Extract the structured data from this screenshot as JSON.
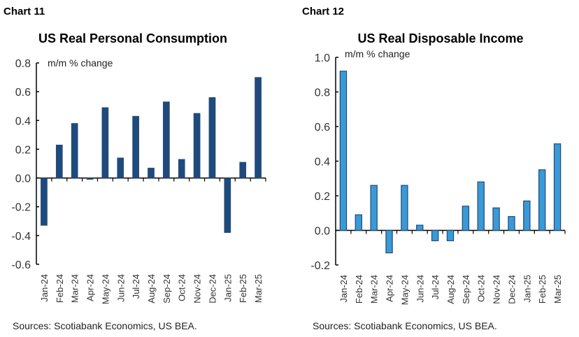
{
  "chart_data": [
    {
      "type": "bar",
      "label": "Chart 11",
      "title": "US Real Personal Consumption",
      "ylabel": "m/m % change",
      "source": "Sources: Scotiabank Economics, US BEA.",
      "categories": [
        "Jan-24",
        "Feb-24",
        "Mar-24",
        "Apr-24",
        "May-24",
        "Jun-24",
        "Jul-24",
        "Aug-24",
        "Sep-24",
        "Oct-24",
        "Nov-24",
        "Dec-24",
        "Jan-25",
        "Feb-25",
        "Mar-25"
      ],
      "values": [
        -0.33,
        0.23,
        0.38,
        -0.01,
        0.49,
        0.14,
        0.43,
        0.07,
        0.53,
        0.13,
        0.45,
        0.56,
        -0.38,
        0.11,
        0.7
      ],
      "ylim": [
        -0.6,
        0.8
      ],
      "yticks": [
        "0.8",
        "0.6",
        "0.4",
        "0.2",
        "0.0",
        "-0.2",
        "-0.4",
        "-0.6"
      ],
      "grid": false,
      "colors": {
        "fill": "#1f4a7c",
        "stroke": "#1f4a7c"
      }
    },
    {
      "type": "bar",
      "label": "Chart 12",
      "title": "US Real Disposable Income",
      "ylabel": "m/m % change",
      "source": "Sources: Scotiabank Economics, US BEA.",
      "categories": [
        "Jan-24",
        "Feb-24",
        "Mar-24",
        "Apr-24",
        "May-24",
        "Jun-24",
        "Jul-24",
        "Aug-24",
        "Sep-24",
        "Oct-24",
        "Nov-24",
        "Dec-24",
        "Jan-25",
        "Feb-25",
        "Mar-25"
      ],
      "values": [
        0.92,
        0.09,
        0.26,
        -0.13,
        0.26,
        0.03,
        -0.06,
        -0.06,
        0.14,
        0.28,
        0.13,
        0.08,
        0.17,
        0.35,
        0.5
      ],
      "ylim": [
        -0.2,
        1.0
      ],
      "yticks": [
        "1.0",
        "0.8",
        "0.6",
        "0.4",
        "0.2",
        "0.0",
        "-0.2"
      ],
      "grid": false,
      "colors": {
        "fill": "#3a9ad6",
        "stroke": "#1f4a7c"
      }
    }
  ]
}
